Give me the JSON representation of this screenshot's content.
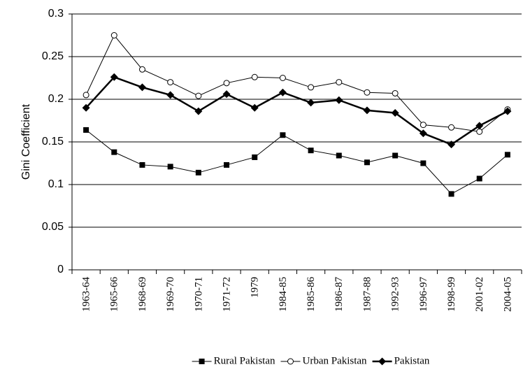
{
  "chart_data": {
    "type": "line",
    "y_label": "Gini Coefficient",
    "categories": [
      "1963-64",
      "1965-66",
      "1968-69",
      "1969-70",
      "1970-71",
      "1971-72",
      "1979",
      "1984-85",
      "1985-86",
      "1986-87",
      "1987-88",
      "1992-93",
      "1996-97",
      "1998-99",
      "2001-02",
      "2004-05"
    ],
    "series": [
      {
        "name": "Rural Pakistan",
        "color": "#000000",
        "marker": "square",
        "values": [
          0.164,
          0.138,
          0.123,
          0.121,
          0.114,
          0.123,
          0.132,
          0.158,
          0.14,
          0.134,
          0.126,
          0.134,
          0.125,
          0.089,
          0.107,
          0.135
        ]
      },
      {
        "name": "Urban Pakistan",
        "color": "#000000",
        "marker": "open-circle",
        "values": [
          0.205,
          0.275,
          0.235,
          0.22,
          0.204,
          0.219,
          0.226,
          0.225,
          0.214,
          0.22,
          0.208,
          0.207,
          0.17,
          0.167,
          0.162,
          0.188
        ]
      },
      {
        "name": "Pakistan",
        "color": "#000000",
        "marker": "diamond",
        "values": [
          0.19,
          0.226,
          0.214,
          0.205,
          0.186,
          0.206,
          0.19,
          0.208,
          0.196,
          0.199,
          0.187,
          0.184,
          0.16,
          0.147,
          0.169,
          0.186
        ]
      }
    ],
    "ylim": [
      0,
      0.3
    ],
    "yticks": [
      0,
      0.05,
      0.1,
      0.15,
      0.2,
      0.25,
      0.3
    ],
    "grid": true,
    "legend": "bottom"
  }
}
